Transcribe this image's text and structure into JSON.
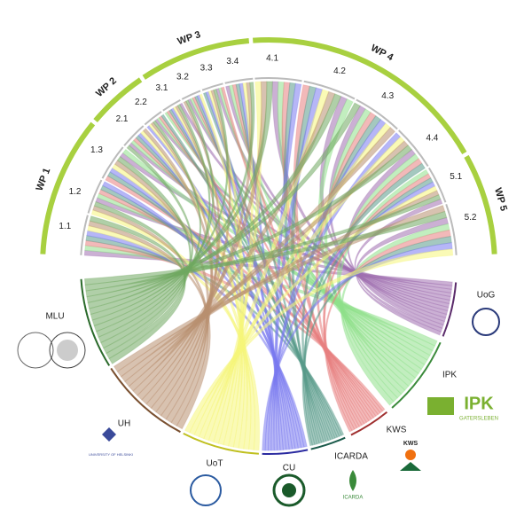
{
  "work_packages": [
    "WP 1",
    "WP 2",
    "WP 3",
    "WP 4",
    "WP 5"
  ],
  "tasks": [
    "1.1",
    "1.2",
    "1.3",
    "2.1",
    "2.2",
    "3.1",
    "3.2",
    "3.3",
    "3.4",
    "4.1",
    "4.2",
    "4.3",
    "4.4",
    "5.1",
    "5.2"
  ],
  "partners": [
    "UoG",
    "IPK",
    "KWS",
    "ICARDA",
    "CU",
    "UoT",
    "UH",
    "MLU"
  ],
  "logos": {
    "ipk": "IPK",
    "ipk_sub": "GATERSLEBEN",
    "kws": "KWS",
    "icarda": "ICARDA",
    "uh": "UNIVERSITY OF HELSINKI"
  }
}
